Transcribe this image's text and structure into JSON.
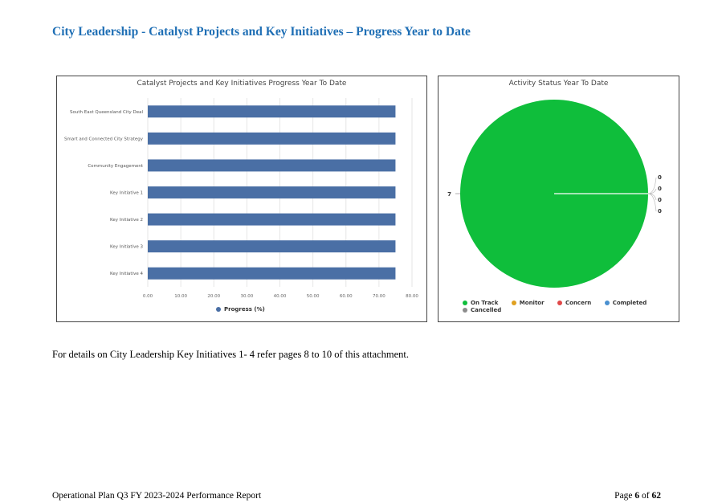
{
  "heading": "City Leadership - Catalyst Projects and Key Initiatives – Progress Year to Date",
  "body_text": "For details on City Leadership Key Initiatives 1- 4 refer pages 8 to 10 of this attachment.",
  "footer": {
    "left": "Operational Plan Q3 FY 2023-2024 Performance Report",
    "page_prefix": "Page ",
    "page_current": "6",
    "page_mid": " of ",
    "page_total": "62"
  },
  "chart_data": [
    {
      "type": "bar",
      "orientation": "horizontal",
      "title": "Catalyst Projects and Key Initiatives Progress Year To Date",
      "categories": [
        "South East Queensland City Deal",
        "Smart and Connected City Strategy",
        "Community Engagement",
        "Key Initiative 1",
        "Key Initiative 2",
        "Key Initiative 3",
        "Key Initiative 4"
      ],
      "series": [
        {
          "name": "Progress (%)",
          "values": [
            75,
            75,
            75,
            75,
            75,
            75,
            75
          ]
        }
      ],
      "xlim": [
        0,
        80
      ],
      "xticks": [
        "0.00",
        "10.00",
        "20.00",
        "30.00",
        "40.00",
        "50.00",
        "60.00",
        "70.00",
        "80.00"
      ],
      "grid": true,
      "legend": "bottom",
      "bar_color": "#4a6fa5"
    },
    {
      "type": "pie",
      "title": "Activity Status Year To Date",
      "categories": [
        "On Track",
        "Monitor",
        "Concern",
        "Completed",
        "Cancelled"
      ],
      "values": [
        7,
        0,
        0,
        0,
        0
      ],
      "colors": [
        "#0fbe3b",
        "#e0a020",
        "#e04848",
        "#4a90d0",
        "#8c8c8c"
      ],
      "data_labels": [
        "7",
        "0",
        "0",
        "0",
        "0"
      ],
      "legend": "bottom"
    }
  ]
}
